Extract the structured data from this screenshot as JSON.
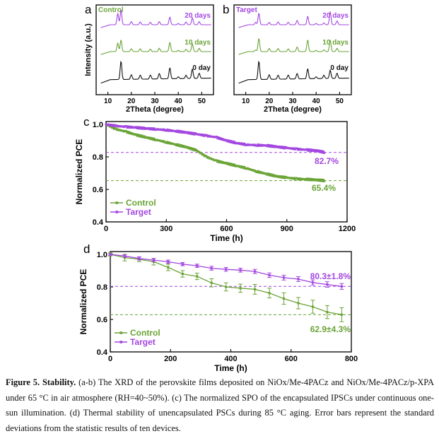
{
  "figure": {
    "caption": {
      "label": "Figure 5. Stability.",
      "text": " (a-b) The XRD of the perovskite films deposited on NiOx/Me-4PACz and NiOx/Me-4PACz/p-XPA under 65 °C in air atmosphere (RH=40~50%). (c) The normalized SPO of the encapsulated IPSCs under continuous one-sun illumination. (d) Thermal stability of unencapsulated PSCs during 85 °C aging. Error bars represent the standard deviations from the statistic results of ten devices."
    }
  },
  "colors": {
    "control": "#6aa436",
    "target": "#a347e0",
    "zero_day": "#111111"
  },
  "chart_data": [
    {
      "panel": "a",
      "type": "line",
      "title": "Control",
      "xlabel": "2Theta (degree)",
      "ylabel": "Intensity (a.u.)",
      "xlim": [
        5,
        55
      ],
      "xticks": [
        10,
        20,
        30,
        40,
        50
      ],
      "peaks_2theta": [
        14.2,
        15.6,
        20.0,
        23.8,
        28.1,
        31.9,
        36.4,
        40.0,
        43.3,
        46.0,
        48.9
      ],
      "series": [
        {
          "name": "20 days",
          "intensities": [
            0.72,
            0.95,
            0.2,
            0.18,
            0.16,
            0.2,
            0.5,
            0.08,
            0.18,
            0.45,
            0.2
          ]
        },
        {
          "name": "10 days",
          "intensities": [
            0.55,
            0.75,
            0.18,
            0.18,
            0.16,
            0.22,
            0.6,
            0.08,
            0.15,
            0.5,
            0.22
          ]
        },
        {
          "name": "0 day",
          "intensities": [
            0.0,
            1.0,
            0.25,
            0.22,
            0.22,
            0.3,
            0.6,
            0.1,
            0.18,
            0.52,
            0.28
          ]
        }
      ]
    },
    {
      "panel": "b",
      "type": "line",
      "title": "Target",
      "xlabel": "2Theta (degree)",
      "ylabel": "",
      "xlim": [
        5,
        55
      ],
      "xticks": [
        10,
        20,
        30,
        40,
        50
      ],
      "peaks_2theta": [
        14.2,
        15.6,
        20.0,
        23.8,
        28.1,
        31.9,
        36.4,
        40.0,
        43.3,
        46.0,
        48.9
      ],
      "series": [
        {
          "name": "20 days",
          "intensities": [
            0.15,
            0.75,
            0.15,
            0.18,
            0.16,
            0.28,
            0.55,
            0.08,
            0.12,
            0.85,
            0.25
          ]
        },
        {
          "name": "10 days",
          "intensities": [
            0.1,
            0.85,
            0.2,
            0.2,
            0.18,
            0.3,
            0.75,
            0.08,
            0.12,
            0.75,
            0.22
          ]
        },
        {
          "name": "0 day",
          "intensities": [
            0.0,
            1.0,
            0.25,
            0.22,
            0.22,
            0.3,
            0.55,
            0.1,
            0.18,
            0.45,
            0.28
          ]
        }
      ]
    },
    {
      "panel": "c",
      "type": "line",
      "xlabel": "Time (h)",
      "ylabel": "Normalized PCE",
      "xlim": [
        0,
        1200
      ],
      "ylim": [
        0.4,
        1.0
      ],
      "xticks": [
        0,
        300,
        600,
        900,
        1200
      ],
      "yticks": [
        0.4,
        0.6,
        0.8,
        1.0
      ],
      "legend": "bottom-left",
      "annotations": [
        "82.7%",
        "65.4%"
      ],
      "reference_lines": [
        0.827,
        0.654
      ],
      "series": [
        {
          "name": "Control",
          "x": [
            0,
            50,
            100,
            150,
            200,
            250,
            300,
            350,
            400,
            450,
            500,
            550,
            600,
            650,
            700,
            750,
            800,
            850,
            900,
            950,
            1000,
            1050,
            1090
          ],
          "y": [
            1.0,
            0.97,
            0.955,
            0.935,
            0.92,
            0.905,
            0.89,
            0.875,
            0.86,
            0.84,
            0.8,
            0.775,
            0.76,
            0.745,
            0.73,
            0.71,
            0.695,
            0.68,
            0.672,
            0.665,
            0.662,
            0.658,
            0.654
          ]
        },
        {
          "name": "Target",
          "x": [
            0,
            50,
            100,
            150,
            200,
            250,
            300,
            350,
            400,
            450,
            500,
            550,
            600,
            650,
            700,
            750,
            800,
            850,
            900,
            950,
            1000,
            1050,
            1090
          ],
          "y": [
            1.0,
            0.99,
            0.985,
            0.98,
            0.975,
            0.97,
            0.965,
            0.958,
            0.95,
            0.94,
            0.93,
            0.92,
            0.9,
            0.885,
            0.875,
            0.872,
            0.87,
            0.862,
            0.855,
            0.848,
            0.843,
            0.838,
            0.827
          ]
        }
      ]
    },
    {
      "panel": "d",
      "type": "line",
      "xlabel": "Time (h)",
      "ylabel": "Normalized PCE",
      "xlim": [
        0,
        800
      ],
      "ylim": [
        0.4,
        1.0
      ],
      "xticks": [
        0,
        200,
        400,
        600,
        800
      ],
      "yticks": [
        0.4,
        0.6,
        0.8,
        1.0
      ],
      "legend": "bottom-left",
      "annotations": [
        "80.3±1.8%",
        "62.9±4.3%"
      ],
      "reference_lines": [
        0.803,
        0.629
      ],
      "series": [
        {
          "name": "Control",
          "x": [
            0,
            48,
            96,
            144,
            192,
            240,
            288,
            336,
            384,
            432,
            480,
            528,
            576,
            624,
            672,
            720,
            768
          ],
          "y": [
            1.0,
            0.98,
            0.97,
            0.955,
            0.92,
            0.88,
            0.865,
            0.825,
            0.8,
            0.792,
            0.785,
            0.762,
            0.728,
            0.7,
            0.678,
            0.645,
            0.629
          ],
          "err": [
            0.01,
            0.02,
            0.015,
            0.02,
            0.02,
            0.02,
            0.02,
            0.025,
            0.025,
            0.025,
            0.03,
            0.03,
            0.035,
            0.035,
            0.04,
            0.04,
            0.043
          ]
        },
        {
          "name": "Target",
          "x": [
            0,
            48,
            96,
            144,
            192,
            240,
            288,
            336,
            384,
            432,
            480,
            528,
            576,
            624,
            672,
            720,
            768
          ],
          "y": [
            1.0,
            0.99,
            0.975,
            0.965,
            0.955,
            0.94,
            0.93,
            0.915,
            0.908,
            0.903,
            0.895,
            0.872,
            0.857,
            0.848,
            0.827,
            0.815,
            0.803
          ],
          "err": [
            0.005,
            0.008,
            0.01,
            0.01,
            0.01,
            0.01,
            0.01,
            0.012,
            0.012,
            0.012,
            0.013,
            0.014,
            0.015,
            0.015,
            0.016,
            0.017,
            0.018
          ]
        }
      ]
    }
  ],
  "panels": {
    "a": {
      "letter": "a"
    },
    "b": {
      "letter": "b"
    },
    "c": {
      "letter": "c"
    },
    "d": {
      "letter": "d"
    }
  }
}
